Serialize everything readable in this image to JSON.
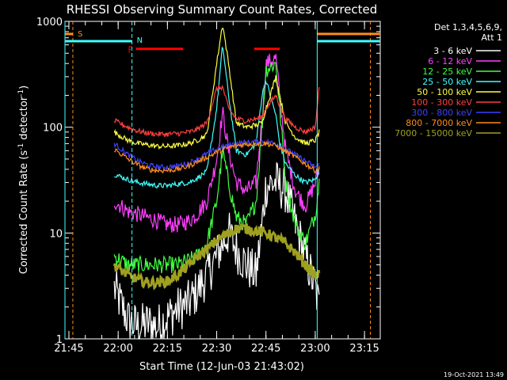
{
  "chart_data": {
    "type": "line",
    "title": "RHESSI Observing Summary Count Rates, Corrected",
    "xlabel": "Start Time (12-Jun-03 21:43:02)",
    "ylabel": "Corrected Count Rate (s⁻¹ detector⁻¹)",
    "ylabel_parts": [
      "Corrected Count Rate (s",
      "-1",
      " detector",
      "-1",
      ")"
    ],
    "yscale": "log",
    "ylim": [
      1,
      1000
    ],
    "xlim_minutes": [
      21.73,
      23.33
    ],
    "x_unit": "hours since 00:00 UT, 12-Jun-03",
    "xticks": [
      {
        "v": 21.75,
        "label": "21:45"
      },
      {
        "v": 22.0,
        "label": "22:00"
      },
      {
        "v": 22.25,
        "label": "22:15"
      },
      {
        "v": 22.5,
        "label": "22:30"
      },
      {
        "v": 22.75,
        "label": "22:45"
      },
      {
        "v": 23.0,
        "label": "23:00"
      },
      {
        "v": 23.25,
        "label": "23:15"
      }
    ],
    "yticks": [
      {
        "v": 1,
        "label": "1"
      },
      {
        "v": 10,
        "label": "10"
      },
      {
        "v": 100,
        "label": "100"
      },
      {
        "v": 1000,
        "label": "1000"
      }
    ],
    "legend_header": [
      "Det 1,3,4,5,6,9,",
      "Att 1"
    ],
    "legend_position": "right",
    "timestamp": "19-Oct-2021 13:49",
    "series": [
      {
        "name": "3 - 6 keV",
        "color": "#ffffff",
        "x": [
          21.98,
          22.05,
          22.1,
          22.15,
          22.2,
          22.25,
          22.3,
          22.36,
          22.4,
          22.45,
          22.5,
          22.53,
          22.56,
          22.6,
          22.65,
          22.7,
          22.73,
          22.75,
          22.8,
          22.85,
          22.9,
          22.95,
          23.0,
          23.02
        ],
        "y": [
          3,
          1.5,
          1.3,
          1.4,
          1.3,
          1.6,
          1.9,
          2.2,
          2.8,
          4,
          6,
          8,
          10,
          7,
          5,
          4,
          12,
          28,
          30,
          25,
          12,
          6,
          3,
          2
        ]
      },
      {
        "name": "6 - 12 keV",
        "color": "#ff40ff",
        "x": [
          21.98,
          22.05,
          22.1,
          22.15,
          22.2,
          22.25,
          22.3,
          22.36,
          22.4,
          22.45,
          22.5,
          22.53,
          22.56,
          22.6,
          22.65,
          22.7,
          22.73,
          22.75,
          22.8,
          22.82,
          22.85,
          22.9,
          22.95,
          23.0,
          23.02
        ],
        "y": [
          20,
          16,
          15,
          14,
          13,
          12,
          12,
          13,
          15,
          20,
          50,
          140,
          60,
          30,
          25,
          30,
          120,
          400,
          450,
          200,
          60,
          25,
          18,
          30,
          40
        ]
      },
      {
        "name": "12 - 25 keV",
        "color": "#40ff40",
        "x": [
          21.98,
          22.05,
          22.1,
          22.15,
          22.2,
          22.25,
          22.3,
          22.36,
          22.4,
          22.45,
          22.5,
          22.53,
          22.56,
          22.6,
          22.65,
          22.7,
          22.73,
          22.75,
          22.8,
          22.82,
          22.85,
          22.9,
          22.95,
          23.0,
          23.02
        ],
        "y": [
          6,
          5,
          5,
          5,
          5,
          5,
          5,
          5.5,
          6,
          8,
          20,
          60,
          30,
          14,
          12,
          20,
          100,
          350,
          400,
          150,
          30,
          12,
          8,
          15,
          30
        ]
      },
      {
        "name": "25 - 50 keV",
        "color": "#40ffff",
        "x": [
          21.98,
          22.05,
          22.1,
          22.15,
          22.2,
          22.25,
          22.3,
          22.36,
          22.4,
          22.45,
          22.5,
          22.53,
          22.56,
          22.6,
          22.65,
          22.7,
          22.73,
          22.75,
          22.8,
          22.82,
          22.85,
          22.9,
          22.95,
          23.0,
          23.02
        ],
        "y": [
          36,
          32,
          30,
          29,
          28,
          28,
          29,
          30,
          33,
          38,
          150,
          600,
          200,
          60,
          55,
          70,
          200,
          280,
          130,
          70,
          45,
          35,
          30,
          32,
          40
        ]
      },
      {
        "name": "50 - 100 keV",
        "color": "#ffff40",
        "x": [
          21.98,
          22.05,
          22.1,
          22.15,
          22.2,
          22.25,
          22.3,
          22.36,
          22.4,
          22.45,
          22.5,
          22.53,
          22.56,
          22.6,
          22.65,
          22.7,
          22.73,
          22.75,
          22.8,
          22.82,
          22.85,
          22.9,
          22.95,
          23.0,
          23.02
        ],
        "y": [
          90,
          75,
          70,
          68,
          66,
          66,
          67,
          70,
          75,
          85,
          400,
          950,
          400,
          110,
          100,
          105,
          110,
          150,
          300,
          200,
          110,
          80,
          70,
          75,
          90
        ]
      },
      {
        "name": "100 - 300 keV",
        "color": "#ff4040",
        "x": [
          21.98,
          22.05,
          22.1,
          22.15,
          22.2,
          22.25,
          22.3,
          22.36,
          22.4,
          22.45,
          22.5,
          22.53,
          22.56,
          22.6,
          22.65,
          22.7,
          22.73,
          22.75,
          22.8,
          22.82,
          22.85,
          22.9,
          22.95,
          23.0,
          23.02
        ],
        "y": [
          115,
          100,
          92,
          88,
          86,
          86,
          87,
          90,
          95,
          110,
          230,
          240,
          150,
          120,
          115,
          120,
          125,
          150,
          200,
          160,
          120,
          100,
          90,
          100,
          240
        ]
      },
      {
        "name": "300 - 800 keV",
        "color": "#4040ff",
        "x": [
          21.98,
          22.05,
          22.1,
          22.15,
          22.2,
          22.25,
          22.3,
          22.36,
          22.4,
          22.45,
          22.5,
          22.56,
          22.6,
          22.65,
          22.7,
          22.75,
          22.8,
          22.85,
          22.9,
          22.95,
          23.0,
          23.02
        ],
        "y": [
          70,
          55,
          48,
          44,
          42,
          42,
          43,
          46,
          50,
          56,
          62,
          68,
          70,
          72,
          73,
          73,
          70,
          62,
          55,
          48,
          42,
          44
        ]
      },
      {
        "name": "800 - 7000 keV",
        "color": "#ff8c1a",
        "x": [
          21.98,
          22.05,
          22.1,
          22.15,
          22.2,
          22.25,
          22.3,
          22.36,
          22.4,
          22.45,
          22.5,
          22.56,
          22.6,
          22.65,
          22.7,
          22.75,
          22.8,
          22.85,
          22.9,
          22.95,
          23.0,
          23.02
        ],
        "y": [
          62,
          50,
          44,
          40,
          39,
          39,
          40,
          43,
          47,
          52,
          58,
          64,
          67,
          69,
          70,
          70,
          67,
          59,
          52,
          45,
          39,
          41
        ]
      },
      {
        "name": "7000 - 15000 keV",
        "color": "#a0a020",
        "x": [
          21.98,
          22.05,
          22.1,
          22.15,
          22.2,
          22.25,
          22.3,
          22.36,
          22.4,
          22.45,
          22.5,
          22.56,
          22.6,
          22.65,
          22.7,
          22.75,
          22.8,
          22.85,
          22.9,
          22.95,
          23.0,
          23.02
        ],
        "y": [
          5,
          4,
          3.6,
          3.4,
          3.4,
          3.5,
          4,
          5,
          6,
          7,
          8.5,
          10,
          11,
          11,
          10.5,
          10,
          9,
          8,
          6.5,
          5,
          4,
          4
        ]
      }
    ],
    "annotations": {
      "saa": {
        "label": "S",
        "color": "#ff8c1a",
        "x_start": 21.73,
        "x_end": 21.77,
        "x_end2": 23.28,
        "y": 760
      },
      "night": {
        "label": "N",
        "color": "#40ffff",
        "x_start": 21.73,
        "x_end": 22.07,
        "x_end2": 23.01,
        "y": 650
      },
      "flare": {
        "label": "F",
        "color": "#ff0000",
        "segments": [
          [
            22.09,
            22.33
          ],
          [
            22.69,
            22.82
          ]
        ],
        "y": 550
      }
    }
  }
}
